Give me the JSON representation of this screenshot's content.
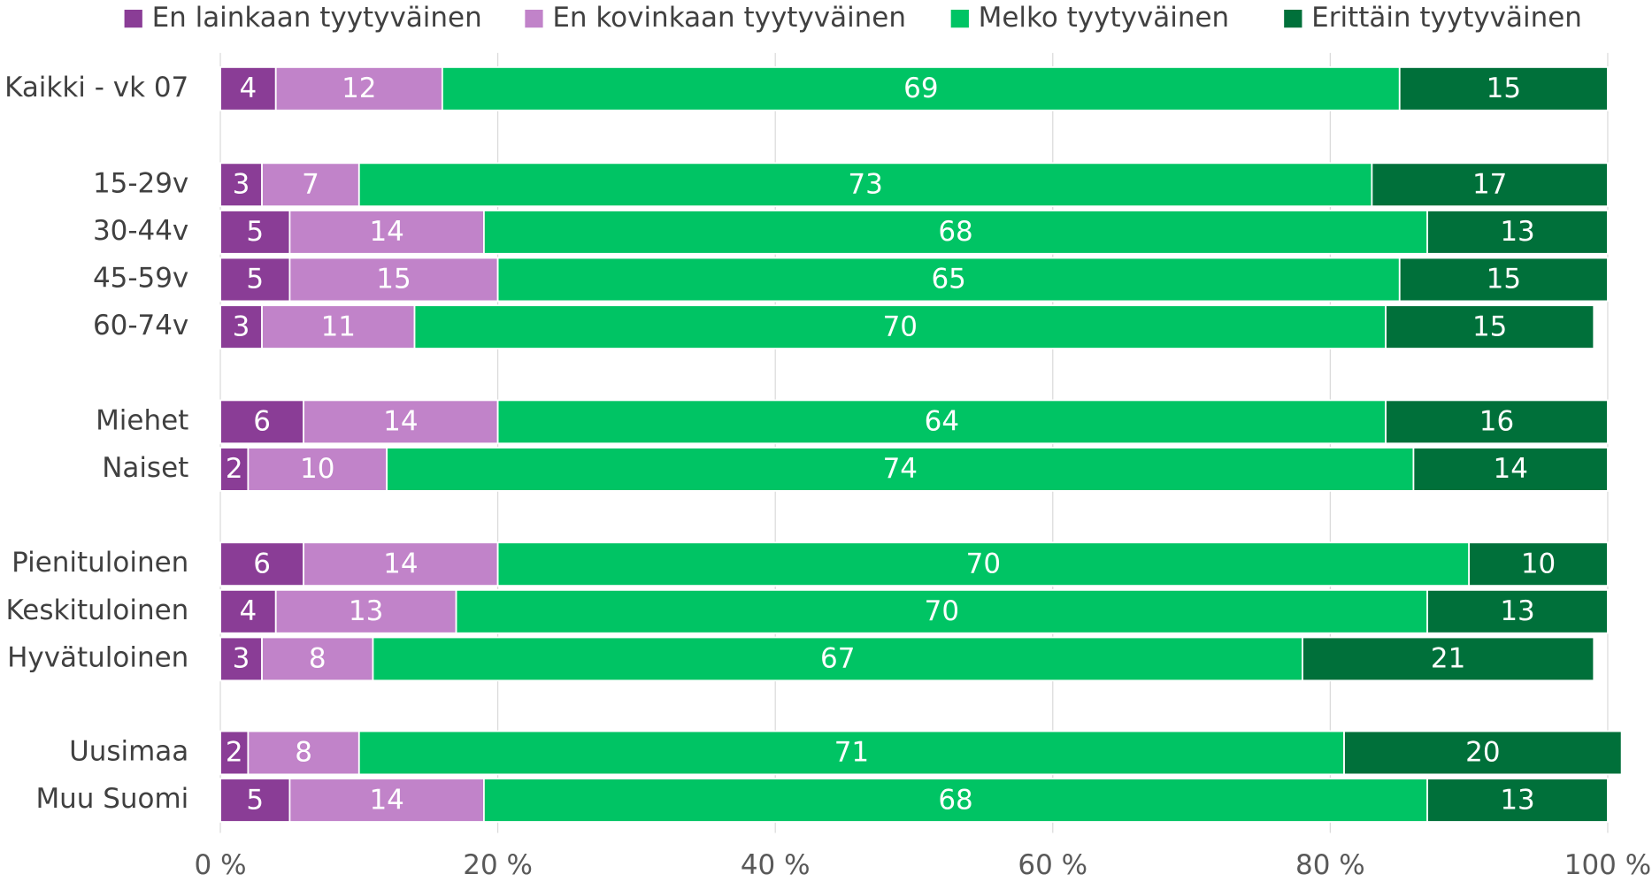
{
  "chart_data": {
    "type": "stacked-bar-horizontal",
    "categories": [
      "Kaikki - vk 07",
      "15-29v",
      "30-44v",
      "45-59v",
      "60-74v",
      "Miehet",
      "Naiset",
      "Pienituloinen",
      "Keskituloinen",
      "Hyvätuloinen",
      "Uusimaa",
      "Muu Suomi"
    ],
    "series": [
      {
        "name": "En lainkaan tyytyväinen",
        "color": "#8a3d96",
        "values": [
          4,
          3,
          5,
          5,
          3,
          6,
          2,
          6,
          4,
          3,
          2,
          5
        ]
      },
      {
        "name": "En kovinkaan tyytyväinen",
        "color": "#c183c9",
        "values": [
          12,
          7,
          14,
          15,
          11,
          14,
          10,
          14,
          13,
          8,
          8,
          14
        ]
      },
      {
        "name": "Melko tyytyväinen",
        "color": "#00c464",
        "values": [
          69,
          73,
          68,
          65,
          70,
          64,
          74,
          70,
          70,
          67,
          71,
          68
        ]
      },
      {
        "name": "Erittäin tyytyväinen",
        "color": "#00703a",
        "values": [
          15,
          17,
          13,
          15,
          15,
          16,
          14,
          10,
          13,
          21,
          20,
          13
        ]
      }
    ],
    "xlim": [
      0,
      100
    ],
    "xticks": [
      {
        "value": 0,
        "label": "0 %"
      },
      {
        "value": 20,
        "label": "20 %"
      },
      {
        "value": 40,
        "label": "40 %"
      },
      {
        "value": 60,
        "label": "60 %"
      },
      {
        "value": 80,
        "label": "80 %"
      },
      {
        "value": 100,
        "label": "100 %"
      }
    ],
    "grid": true,
    "legend": "top"
  }
}
